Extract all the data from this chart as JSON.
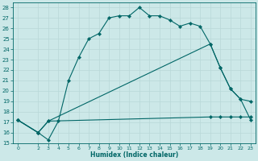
{
  "xlabel": "Humidex (Indice chaleur)",
  "bg_color": "#cce8e8",
  "grid_color": "#b8d8d8",
  "line_color": "#006666",
  "xlim": [
    -0.5,
    23.5
  ],
  "ylim": [
    15,
    28.5
  ],
  "xticks": [
    0,
    2,
    3,
    4,
    5,
    6,
    7,
    8,
    9,
    10,
    11,
    12,
    13,
    14,
    15,
    16,
    17,
    18,
    19,
    20,
    21,
    22,
    23
  ],
  "yticks": [
    15,
    16,
    17,
    18,
    19,
    20,
    21,
    22,
    23,
    24,
    25,
    26,
    27,
    28
  ],
  "line1_x": [
    0,
    2,
    3,
    4,
    5,
    6,
    7,
    8,
    9,
    10,
    11,
    12,
    13,
    14,
    15,
    16,
    17,
    18,
    19,
    20,
    21,
    22,
    23
  ],
  "line1_y": [
    17.2,
    16.0,
    15.3,
    17.1,
    21.0,
    23.2,
    25.0,
    25.5,
    27.0,
    27.2,
    27.2,
    28.0,
    27.2,
    27.2,
    26.8,
    26.2,
    26.5,
    26.2,
    24.5,
    22.2,
    20.2,
    19.2,
    17.2
  ],
  "line2_x": [
    0,
    2,
    3,
    19,
    20,
    21,
    22,
    23
  ],
  "line2_y": [
    17.2,
    16.0,
    17.1,
    24.5,
    22.2,
    20.2,
    19.2,
    19.0
  ],
  "line3_x": [
    0,
    2,
    3,
    19,
    20,
    21,
    22,
    23
  ],
  "line3_y": [
    17.2,
    16.0,
    17.1,
    17.5,
    17.5,
    17.5,
    17.5,
    17.5
  ]
}
